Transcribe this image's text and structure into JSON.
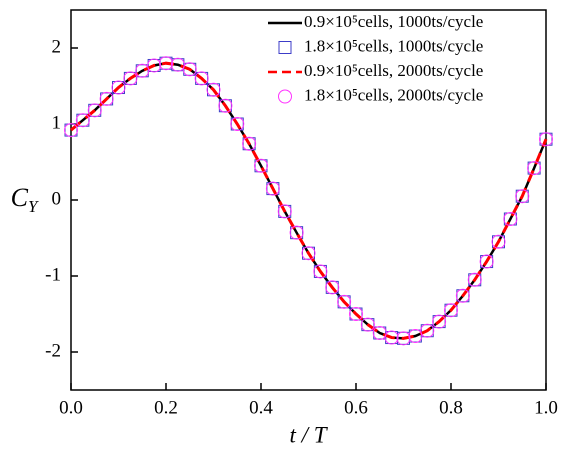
{
  "chart_data": {
    "type": "line",
    "xlabel": "t / T",
    "ylabel": "CY",
    "xlim": [
      0,
      1
    ],
    "ylim": [
      -2.5,
      2.5
    ],
    "xticks": [
      {
        "value": 0,
        "label": "0.0"
      },
      0.2,
      0.4,
      0.6,
      0.8,
      {
        "value": 1,
        "label": "1.0"
      }
    ],
    "yticks": [
      {
        "value": -2,
        "label": "-2"
      },
      {
        "value": -1,
        "label": "-1"
      },
      0,
      1,
      2
    ],
    "legend": "upper right",
    "x": [
      0,
      0.025,
      0.05,
      0.075,
      0.1,
      0.125,
      0.15,
      0.175,
      0.2,
      0.225,
      0.25,
      0.275,
      0.3,
      0.325,
      0.35,
      0.375,
      0.4,
      0.425,
      0.45,
      0.475,
      0.5,
      0.525,
      0.55,
      0.575,
      0.6,
      0.625,
      0.65,
      0.675,
      0.7,
      0.725,
      0.75,
      0.775,
      0.8,
      0.825,
      0.85,
      0.875,
      0.9,
      0.925,
      0.95,
      0.975,
      1
    ],
    "series": [
      {
        "name": "0.9×10⁵cells, 1000ts/cycle",
        "color": "#000000",
        "line_style": "solid",
        "marker": "none",
        "values": [
          0.92,
          1.05,
          1.18,
          1.33,
          1.48,
          1.6,
          1.7,
          1.77,
          1.8,
          1.78,
          1.72,
          1.6,
          1.45,
          1.24,
          1.0,
          0.74,
          0.45,
          0.15,
          -0.15,
          -0.43,
          -0.7,
          -0.94,
          -1.15,
          -1.34,
          -1.5,
          -1.64,
          -1.75,
          -1.81,
          -1.82,
          -1.79,
          -1.72,
          -1.6,
          -1.45,
          -1.26,
          -1.05,
          -0.81,
          -0.55,
          -0.25,
          0.05,
          0.42,
          0.8
        ]
      },
      {
        "name": "1.8×10⁵cells, 1000ts/cycle",
        "color": "#3c3cc8",
        "line_style": "none",
        "marker": "square",
        "values": [
          0.92,
          1.05,
          1.18,
          1.33,
          1.48,
          1.6,
          1.7,
          1.77,
          1.8,
          1.78,
          1.72,
          1.6,
          1.45,
          1.24,
          1.0,
          0.74,
          0.45,
          0.15,
          -0.15,
          -0.43,
          -0.7,
          -0.94,
          -1.15,
          -1.34,
          -1.5,
          -1.64,
          -1.75,
          -1.81,
          -1.82,
          -1.79,
          -1.72,
          -1.6,
          -1.45,
          -1.26,
          -1.05,
          -0.81,
          -0.55,
          -0.25,
          0.05,
          0.42,
          0.8
        ]
      },
      {
        "name": "0.9×10⁵cells, 2000ts/cycle",
        "color": "#ff0000",
        "line_style": "dashed",
        "marker": "none",
        "values": [
          0.92,
          1.05,
          1.18,
          1.33,
          1.48,
          1.6,
          1.7,
          1.77,
          1.8,
          1.78,
          1.72,
          1.6,
          1.45,
          1.24,
          1.0,
          0.74,
          0.45,
          0.15,
          -0.15,
          -0.43,
          -0.7,
          -0.94,
          -1.15,
          -1.34,
          -1.5,
          -1.64,
          -1.75,
          -1.81,
          -1.82,
          -1.79,
          -1.72,
          -1.6,
          -1.45,
          -1.26,
          -1.05,
          -0.81,
          -0.55,
          -0.25,
          0.05,
          0.42,
          0.8
        ]
      },
      {
        "name": "1.8×10⁵cells, 2000ts/cycle",
        "color": "#ff33ff",
        "line_style": "none",
        "marker": "circle",
        "values": [
          0.92,
          1.05,
          1.18,
          1.33,
          1.48,
          1.6,
          1.7,
          1.77,
          1.8,
          1.78,
          1.72,
          1.6,
          1.45,
          1.24,
          1.0,
          0.74,
          0.45,
          0.15,
          -0.15,
          -0.43,
          -0.7,
          -0.94,
          -1.15,
          -1.34,
          -1.5,
          -1.64,
          -1.75,
          -1.81,
          -1.82,
          -1.79,
          -1.72,
          -1.6,
          -1.45,
          -1.26,
          -1.05,
          -0.81,
          -0.55,
          -0.25,
          0.05,
          0.42,
          0.8
        ]
      }
    ]
  }
}
